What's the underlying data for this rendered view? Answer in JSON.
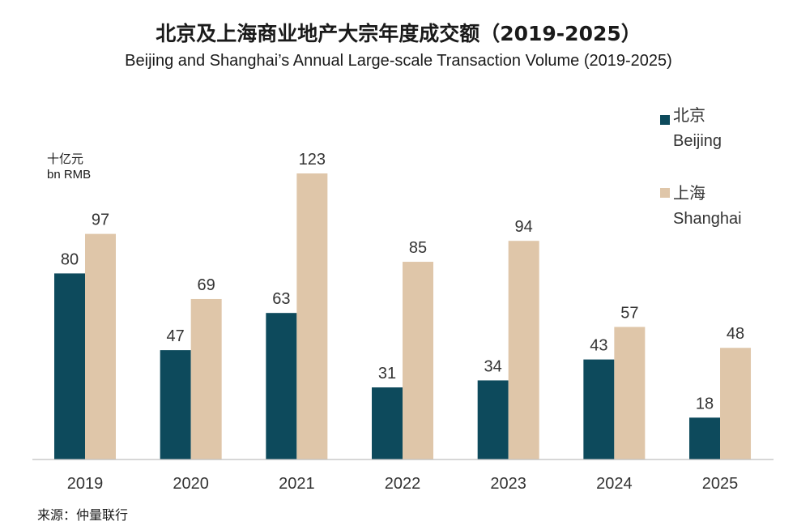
{
  "title_cn": "北京及上海商业地产大宗年度成交额（2019-2025）",
  "title_en": "Beijing and Shanghai’s Annual Large-scale Transaction Volume (2019-2025)",
  "unit_cn": "十亿元",
  "unit_en": "bn RMB",
  "source": "来源：仲量联行",
  "colors": {
    "beijing": "#0d4a5c",
    "shanghai": "#dfc6a9",
    "axis": "#bfbfbf"
  },
  "legend": [
    {
      "cn": "北京",
      "en": "Beijing"
    },
    {
      "cn": "上海",
      "en": "Shanghai"
    }
  ],
  "chart_data": {
    "type": "bar",
    "title": "北京及上海商业地产大宗年度成交额（2019-2025）",
    "subtitle": "Beijing and Shanghai’s Annual Large-scale Transaction Volume (2019-2025)",
    "ylabel": "十亿元 bn RMB",
    "xlabel": "",
    "categories": [
      "2019",
      "2020",
      "2021",
      "2022",
      "2023",
      "2024",
      "2025"
    ],
    "series": [
      {
        "name": "北京 Beijing",
        "values": [
          80,
          47,
          63,
          31,
          34,
          43,
          18
        ]
      },
      {
        "name": "上海 Shanghai",
        "values": [
          97,
          69,
          123,
          85,
          94,
          57,
          48
        ]
      }
    ],
    "ylim": [
      0,
      123
    ],
    "grid": false,
    "legend_position": "right"
  }
}
